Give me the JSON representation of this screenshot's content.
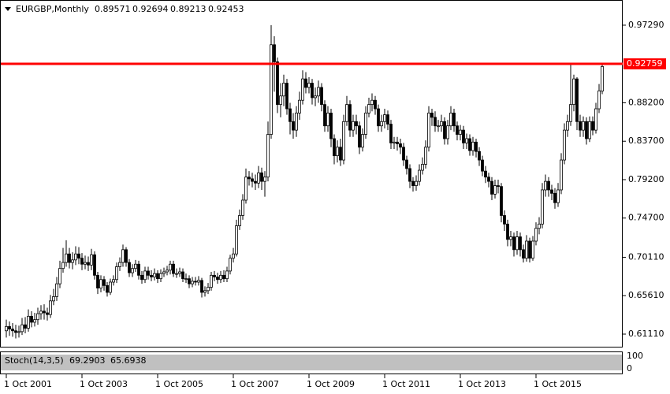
{
  "chart_data": {
    "type": "candlestick",
    "title": "EURGBP,Monthly",
    "x": [
      "2001-10-01",
      "2001-11-01",
      "2001-12-01",
      "2002-01-01",
      "2002-02-01",
      "2002-03-01",
      "2002-04-01",
      "2002-05-01",
      "2002-06-01",
      "2002-07-01",
      "2002-08-01",
      "2002-09-01",
      "2002-10-01",
      "2002-11-01",
      "2002-12-01",
      "2003-01-01",
      "2003-02-01",
      "2003-03-01",
      "2003-04-01",
      "2003-05-01",
      "2003-06-01",
      "2003-07-01",
      "2003-08-01",
      "2003-09-01",
      "2003-10-01",
      "2003-11-01",
      "2003-12-01",
      "2004-01-01",
      "2004-02-01",
      "2004-03-01",
      "2004-04-01",
      "2004-05-01",
      "2004-06-01",
      "2004-07-01",
      "2004-08-01",
      "2004-09-01",
      "2004-10-01",
      "2004-11-01",
      "2004-12-01",
      "2005-01-01",
      "2005-02-01",
      "2005-03-01",
      "2005-04-01",
      "2005-05-01",
      "2005-06-01",
      "2005-07-01",
      "2005-08-01",
      "2005-09-01",
      "2005-10-01",
      "2005-11-01",
      "2005-12-01",
      "2006-01-01",
      "2006-02-01",
      "2006-03-01",
      "2006-04-01",
      "2006-05-01",
      "2006-06-01",
      "2006-07-01",
      "2006-08-01",
      "2006-09-01",
      "2006-10-01",
      "2006-11-01",
      "2006-12-01",
      "2007-01-01",
      "2007-02-01",
      "2007-03-01",
      "2007-04-01",
      "2007-05-01",
      "2007-06-01",
      "2007-07-01",
      "2007-08-01",
      "2007-09-01",
      "2007-10-01",
      "2007-11-01",
      "2007-12-01",
      "2008-01-01",
      "2008-02-01",
      "2008-03-01",
      "2008-04-01",
      "2008-05-01",
      "2008-06-01",
      "2008-07-01",
      "2008-08-01",
      "2008-09-01",
      "2008-10-01",
      "2008-11-01",
      "2008-12-01",
      "2009-01-01",
      "2009-02-01",
      "2009-03-01",
      "2009-04-01",
      "2009-05-01",
      "2009-06-01",
      "2009-07-01",
      "2009-08-01",
      "2009-09-01",
      "2009-10-01",
      "2009-11-01",
      "2009-12-01",
      "2010-01-01",
      "2010-02-01",
      "2010-03-01",
      "2010-04-01",
      "2010-05-01",
      "2010-06-01",
      "2010-07-01",
      "2010-08-01",
      "2010-09-01",
      "2010-10-01",
      "2010-11-01",
      "2010-12-01",
      "2011-01-01",
      "2011-02-01",
      "2011-03-01",
      "2011-04-01",
      "2011-05-01",
      "2011-06-01",
      "2011-07-01",
      "2011-08-01",
      "2011-09-01",
      "2011-10-01",
      "2011-11-01",
      "2011-12-01",
      "2012-01-01",
      "2012-02-01",
      "2012-03-01",
      "2012-04-01",
      "2012-05-01",
      "2012-06-01",
      "2012-07-01",
      "2012-08-01",
      "2012-09-01",
      "2012-10-01",
      "2012-11-01",
      "2012-12-01",
      "2013-01-01",
      "2013-02-01",
      "2013-03-01",
      "2013-04-01",
      "2013-05-01",
      "2013-06-01",
      "2013-07-01",
      "2013-08-01",
      "2013-09-01",
      "2013-10-01",
      "2013-11-01",
      "2013-12-01",
      "2014-01-01",
      "2014-02-01",
      "2014-03-01",
      "2014-04-01",
      "2014-05-01",
      "2014-06-01",
      "2014-07-01",
      "2014-08-01",
      "2014-09-01",
      "2014-10-01",
      "2014-11-01",
      "2014-12-01",
      "2015-01-01",
      "2015-02-01",
      "2015-03-01",
      "2015-04-01",
      "2015-05-01",
      "2015-06-01",
      "2015-07-01",
      "2015-08-01",
      "2015-09-01",
      "2015-10-01",
      "2015-11-01",
      "2015-12-01",
      "2016-01-01",
      "2016-02-01",
      "2016-03-01",
      "2016-04-01",
      "2016-05-01",
      "2016-06-01",
      "2016-07-01",
      "2016-08-01",
      "2016-09-01",
      "2016-10-01",
      "2016-11-01",
      "2016-12-01",
      "2017-01-01",
      "2017-02-01",
      "2017-03-01",
      "2017-04-01",
      "2017-05-01",
      "2017-06-01",
      "2017-07-01"
    ],
    "open": [
      0.615,
      0.62,
      0.617,
      0.615,
      0.613,
      0.614,
      0.622,
      0.618,
      0.632,
      0.625,
      0.628,
      0.635,
      0.638,
      0.636,
      0.634,
      0.65,
      0.655,
      0.67,
      0.688,
      0.695,
      0.705,
      0.695,
      0.698,
      0.705,
      0.7,
      0.693,
      0.695,
      0.692,
      0.704,
      0.68,
      0.665,
      0.675,
      0.668,
      0.66,
      0.672,
      0.675,
      0.69,
      0.695,
      0.71,
      0.695,
      0.683,
      0.688,
      0.693,
      0.68,
      0.675,
      0.685,
      0.68,
      0.678,
      0.682,
      0.676,
      0.682,
      0.684,
      0.686,
      0.693,
      0.682,
      0.682,
      0.684,
      0.676,
      0.676,
      0.67,
      0.673,
      0.672,
      0.674,
      0.66,
      0.662,
      0.666,
      0.68,
      0.678,
      0.675,
      0.68,
      0.676,
      0.685,
      0.7,
      0.705,
      0.738,
      0.75,
      0.768,
      0.795,
      0.793,
      0.79,
      0.788,
      0.8,
      0.79,
      0.795,
      0.845,
      0.95,
      0.93,
      0.88,
      0.89,
      0.905,
      0.875,
      0.86,
      0.85,
      0.87,
      0.885,
      0.91,
      0.9,
      0.905,
      0.888,
      0.89,
      0.9,
      0.88,
      0.855,
      0.87,
      0.84,
      0.82,
      0.83,
      0.815,
      0.86,
      0.88,
      0.85,
      0.86,
      0.855,
      0.83,
      0.845,
      0.87,
      0.88,
      0.885,
      0.875,
      0.855,
      0.86,
      0.868,
      0.857,
      0.835,
      0.836,
      0.834,
      0.83,
      0.815,
      0.805,
      0.79,
      0.785,
      0.79,
      0.803,
      0.81,
      0.83,
      0.87,
      0.865,
      0.855,
      0.855,
      0.86,
      0.84,
      0.855,
      0.87,
      0.855,
      0.845,
      0.85,
      0.835,
      0.84,
      0.826,
      0.836,
      0.825,
      0.815,
      0.802,
      0.795,
      0.79,
      0.775,
      0.785,
      0.784,
      0.75,
      0.74,
      0.722,
      0.725,
      0.71,
      0.725,
      0.71,
      0.7,
      0.72,
      0.7,
      0.72,
      0.735,
      0.74,
      0.78,
      0.79,
      0.78,
      0.776,
      0.765,
      0.78,
      0.815,
      0.85,
      0.86,
      0.88,
      0.91,
      0.86,
      0.85,
      0.86,
      0.84,
      0.86,
      0.85,
      0.875,
      0.89571
    ],
    "high": [
      0.628,
      0.626,
      0.624,
      0.622,
      0.621,
      0.63,
      0.631,
      0.64,
      0.638,
      0.636,
      0.642,
      0.645,
      0.646,
      0.642,
      0.657,
      0.664,
      0.678,
      0.697,
      0.712,
      0.721,
      0.712,
      0.707,
      0.714,
      0.713,
      0.706,
      0.703,
      0.702,
      0.711,
      0.708,
      0.684,
      0.68,
      0.679,
      0.672,
      0.676,
      0.68,
      0.695,
      0.701,
      0.716,
      0.713,
      0.699,
      0.693,
      0.698,
      0.697,
      0.685,
      0.69,
      0.69,
      0.686,
      0.688,
      0.686,
      0.687,
      0.689,
      0.691,
      0.697,
      0.697,
      0.688,
      0.689,
      0.688,
      0.682,
      0.68,
      0.678,
      0.678,
      0.679,
      0.677,
      0.667,
      0.671,
      0.684,
      0.685,
      0.683,
      0.685,
      0.686,
      0.69,
      0.704,
      0.712,
      0.745,
      0.757,
      0.775,
      0.805,
      0.802,
      0.8,
      0.798,
      0.808,
      0.806,
      0.802,
      0.86,
      0.973,
      0.96,
      0.935,
      0.905,
      0.915,
      0.91,
      0.882,
      0.87,
      0.878,
      0.895,
      0.92,
      0.918,
      0.912,
      0.91,
      0.9,
      0.908,
      0.905,
      0.885,
      0.878,
      0.875,
      0.845,
      0.838,
      0.84,
      0.868,
      0.89,
      0.885,
      0.868,
      0.868,
      0.86,
      0.852,
      0.878,
      0.888,
      0.893,
      0.89,
      0.88,
      0.868,
      0.875,
      0.873,
      0.862,
      0.842,
      0.842,
      0.84,
      0.835,
      0.82,
      0.81,
      0.795,
      0.797,
      0.81,
      0.818,
      0.838,
      0.878,
      0.875,
      0.872,
      0.862,
      0.868,
      0.865,
      0.862,
      0.878,
      0.875,
      0.86,
      0.856,
      0.855,
      0.846,
      0.845,
      0.842,
      0.84,
      0.83,
      0.82,
      0.808,
      0.8,
      0.795,
      0.792,
      0.792,
      0.788,
      0.756,
      0.745,
      0.732,
      0.73,
      0.732,
      0.73,
      0.716,
      0.727,
      0.724,
      0.726,
      0.742,
      0.748,
      0.788,
      0.798,
      0.795,
      0.786,
      0.782,
      0.788,
      0.823,
      0.858,
      0.868,
      0.927,
      0.915,
      0.912,
      0.868,
      0.866,
      0.865,
      0.866,
      0.866,
      0.882,
      0.904,
      0.92694
    ],
    "low": [
      0.607,
      0.609,
      0.608,
      0.606,
      0.607,
      0.61,
      0.612,
      0.614,
      0.619,
      0.62,
      0.622,
      0.628,
      0.628,
      0.627,
      0.63,
      0.645,
      0.65,
      0.665,
      0.683,
      0.69,
      0.688,
      0.687,
      0.692,
      0.693,
      0.686,
      0.687,
      0.685,
      0.686,
      0.675,
      0.658,
      0.66,
      0.662,
      0.655,
      0.657,
      0.668,
      0.671,
      0.685,
      0.69,
      0.69,
      0.678,
      0.678,
      0.684,
      0.675,
      0.67,
      0.671,
      0.675,
      0.673,
      0.674,
      0.671,
      0.672,
      0.678,
      0.68,
      0.681,
      0.678,
      0.677,
      0.678,
      0.672,
      0.671,
      0.665,
      0.666,
      0.668,
      0.668,
      0.654,
      0.655,
      0.658,
      0.662,
      0.673,
      0.67,
      0.671,
      0.672,
      0.672,
      0.681,
      0.695,
      0.702,
      0.733,
      0.745,
      0.764,
      0.785,
      0.783,
      0.78,
      0.782,
      0.78,
      0.772,
      0.79,
      0.84,
      0.895,
      0.87,
      0.865,
      0.878,
      0.868,
      0.845,
      0.84,
      0.842,
      0.862,
      0.88,
      0.893,
      0.893,
      0.88,
      0.878,
      0.882,
      0.872,
      0.848,
      0.848,
      0.83,
      0.81,
      0.812,
      0.808,
      0.81,
      0.855,
      0.842,
      0.842,
      0.845,
      0.822,
      0.825,
      0.84,
      0.865,
      0.872,
      0.868,
      0.848,
      0.848,
      0.852,
      0.85,
      0.828,
      0.828,
      0.826,
      0.822,
      0.808,
      0.798,
      0.782,
      0.778,
      0.779,
      0.785,
      0.798,
      0.805,
      0.825,
      0.855,
      0.848,
      0.848,
      0.848,
      0.833,
      0.833,
      0.85,
      0.848,
      0.838,
      0.838,
      0.828,
      0.828,
      0.82,
      0.82,
      0.818,
      0.808,
      0.796,
      0.788,
      0.783,
      0.768,
      0.77,
      0.776,
      0.742,
      0.732,
      0.714,
      0.714,
      0.702,
      0.704,
      0.702,
      0.695,
      0.696,
      0.695,
      0.697,
      0.715,
      0.728,
      0.735,
      0.772,
      0.772,
      0.768,
      0.758,
      0.76,
      0.775,
      0.81,
      0.842,
      0.855,
      0.872,
      0.85,
      0.842,
      0.842,
      0.833,
      0.836,
      0.844,
      0.846,
      0.87,
      0.89213
    ],
    "close": [
      0.62,
      0.617,
      0.615,
      0.613,
      0.614,
      0.622,
      0.618,
      0.632,
      0.625,
      0.628,
      0.635,
      0.638,
      0.636,
      0.634,
      0.65,
      0.655,
      0.67,
      0.688,
      0.695,
      0.705,
      0.695,
      0.698,
      0.705,
      0.7,
      0.693,
      0.695,
      0.692,
      0.704,
      0.68,
      0.665,
      0.675,
      0.668,
      0.66,
      0.672,
      0.675,
      0.69,
      0.695,
      0.71,
      0.695,
      0.683,
      0.688,
      0.693,
      0.68,
      0.675,
      0.685,
      0.68,
      0.678,
      0.682,
      0.676,
      0.682,
      0.684,
      0.686,
      0.693,
      0.682,
      0.682,
      0.684,
      0.676,
      0.676,
      0.67,
      0.673,
      0.672,
      0.674,
      0.66,
      0.662,
      0.666,
      0.68,
      0.678,
      0.675,
      0.68,
      0.676,
      0.685,
      0.7,
      0.705,
      0.738,
      0.75,
      0.768,
      0.795,
      0.793,
      0.79,
      0.788,
      0.8,
      0.79,
      0.795,
      0.845,
      0.95,
      0.93,
      0.88,
      0.89,
      0.905,
      0.875,
      0.86,
      0.85,
      0.87,
      0.885,
      0.91,
      0.9,
      0.905,
      0.888,
      0.89,
      0.9,
      0.88,
      0.855,
      0.87,
      0.84,
      0.82,
      0.83,
      0.815,
      0.86,
      0.88,
      0.85,
      0.86,
      0.855,
      0.83,
      0.845,
      0.87,
      0.88,
      0.885,
      0.875,
      0.855,
      0.86,
      0.868,
      0.857,
      0.835,
      0.836,
      0.834,
      0.83,
      0.815,
      0.805,
      0.79,
      0.785,
      0.79,
      0.803,
      0.81,
      0.83,
      0.87,
      0.865,
      0.855,
      0.855,
      0.86,
      0.84,
      0.855,
      0.87,
      0.855,
      0.845,
      0.85,
      0.835,
      0.84,
      0.826,
      0.836,
      0.825,
      0.815,
      0.802,
      0.795,
      0.79,
      0.775,
      0.785,
      0.784,
      0.75,
      0.74,
      0.722,
      0.725,
      0.71,
      0.725,
      0.71,
      0.7,
      0.72,
      0.7,
      0.72,
      0.735,
      0.74,
      0.78,
      0.79,
      0.78,
      0.776,
      0.765,
      0.78,
      0.815,
      0.85,
      0.86,
      0.88,
      0.91,
      0.86,
      0.85,
      0.86,
      0.84,
      0.86,
      0.85,
      0.875,
      0.896,
      0.92453
    ],
    "up_color": "#ffffff",
    "down_color": "#000000",
    "edge_color": "#000000",
    "xlim": [
      "2001-08-01",
      "2018-01-01"
    ],
    "xticks": [
      {
        "value": "2001-10-01",
        "label": "1 Oct 2001"
      },
      {
        "value": "2003-10-01",
        "label": "1 Oct 2003"
      },
      {
        "value": "2005-10-01",
        "label": "1 Oct 2005"
      },
      {
        "value": "2007-10-01",
        "label": "1 Oct 2007"
      },
      {
        "value": "2009-10-01",
        "label": "1 Oct 2009"
      },
      {
        "value": "2011-10-01",
        "label": "1 Oct 2011"
      },
      {
        "value": "2013-10-01",
        "label": "1 Oct 2013"
      },
      {
        "value": "2015-10-01",
        "label": "1 Oct 2015"
      }
    ],
    "ylim": [
      0.5954,
      1.0024
    ],
    "yticks": [
      {
        "value": 0.9729,
        "label": "0.97290"
      },
      {
        "value": 0.882,
        "label": "0.88200"
      },
      {
        "value": 0.837,
        "label": "0.83700"
      },
      {
        "value": 0.792,
        "label": "0.79200"
      },
      {
        "value": 0.747,
        "label": "0.74700"
      },
      {
        "value": 0.7011,
        "label": "0.70110"
      },
      {
        "value": 0.6561,
        "label": "0.65610"
      },
      {
        "value": 0.6111,
        "label": "0.61110"
      }
    ],
    "hline": {
      "value": 0.92759,
      "color": "#ff0000"
    },
    "indicator": {
      "label": "Stoch(14,3,5)",
      "values": [
        69.2903,
        65.6938
      ],
      "ylim": [
        0,
        100
      ],
      "yticks": [
        100,
        0
      ]
    }
  }
}
